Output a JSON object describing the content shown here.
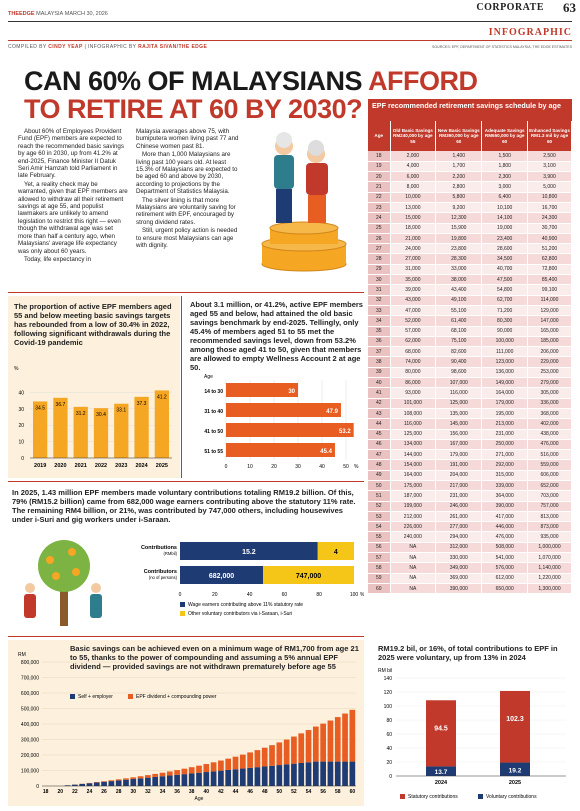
{
  "header": {
    "brand": "THEEDGE",
    "brand_sub": "MALAYSIA",
    "date": "MARCH 30, 2026",
    "section": "CORPORATE",
    "page": "63",
    "label": "INFOGRAPHIC",
    "credit_prefix": "COMPILED BY",
    "credit_name": "CINDY YEAP",
    "credit_mid": "| INFOGRAPHIC BY",
    "credit_illus": "RAJITA SIVAN/THE EDGE",
    "source": "SOURCES: EPF, DEPARTMENT OF STATISTICS MALAYSIA, THE EDGE ESTIMATES"
  },
  "title": {
    "line1_a": "CAN 60% OF MALAYSIANS ",
    "line1_b": "AFFORD",
    "line2": "TO RETIRE AT 60 BY 2030?"
  },
  "article": {
    "col1": [
      "About 60% of Employees Provident Fund (EPF) members are expected to reach the recommended basic savings by age 60 in 2030, up from 41.2% at end-2025, Finance Minister II Datuk Seri Amir Hamzah told Parliament in late February.",
      "Yet, a reality check may be warranted, given that EPF members are allowed to withdraw all their retirement savings at age 55, and populist lawmakers are unlikely to amend legislation to restrict this right — even though the withdrawal age was set more than half a century ago, when Malaysians' average life expectancy was only about 60 years.",
      "Today, life expectancy in"
    ],
    "col2": [
      "Malaysia averages above 75, with bumiputera women living past 77 and Chinese women past 81.",
      "More than 1,000 Malaysians are living past 100 years old. At least 15.3% of Malaysians are expected to be aged 60 and above by 2030, according to projections by the Department of Statistics Malaysia.",
      "The silver lining is that more Malaysians are voluntarily saving for retirement with EPF, encouraged by strong dividend rates.",
      "Still, urgent policy action is needed to ensure most Malaysians can age with dignity."
    ]
  },
  "table": {
    "title": "EPF recommended retirement savings schedule by age",
    "columns": [
      "Age",
      "Old Basic Savings RM240,000 by age 55",
      "New Basic Savings RM390,000 by age 60",
      "Adequate Savings RM650,000 by age 60",
      "Enhanced Savings RM1.3 mil by age 60"
    ],
    "rows": [
      [
        "18",
        "2,000",
        "1,400",
        "1,500",
        "2,500"
      ],
      [
        "19",
        "4,000",
        "1,700",
        "1,800",
        "3,100"
      ],
      [
        "20",
        "6,000",
        "2,200",
        "2,300",
        "3,900"
      ],
      [
        "21",
        "8,000",
        "2,800",
        "3,000",
        "5,000"
      ],
      [
        "22",
        "10,000",
        "5,800",
        "6,400",
        "10,800"
      ],
      [
        "23",
        "13,000",
        "9,200",
        "10,100",
        "16,700"
      ],
      [
        "24",
        "15,000",
        "12,300",
        "14,100",
        "24,300"
      ],
      [
        "25",
        "18,000",
        "15,900",
        "19,000",
        "30,700"
      ],
      [
        "26",
        "21,000",
        "19,800",
        "23,400",
        "40,900"
      ],
      [
        "27",
        "24,000",
        "23,800",
        "28,600",
        "51,200"
      ],
      [
        "28",
        "27,000",
        "28,300",
        "34,500",
        "62,800"
      ],
      [
        "29",
        "31,000",
        "33,000",
        "40,700",
        "72,800"
      ],
      [
        "30",
        "35,000",
        "38,000",
        "47,500",
        "85,400"
      ],
      [
        "31",
        "39,000",
        "43,400",
        "54,800",
        "99,100"
      ],
      [
        "32",
        "43,000",
        "49,100",
        "62,700",
        "114,000"
      ],
      [
        "33",
        "47,000",
        "55,100",
        "71,200",
        "129,000"
      ],
      [
        "34",
        "52,000",
        "61,400",
        "80,300",
        "147,000"
      ],
      [
        "35",
        "57,000",
        "68,100",
        "90,000",
        "165,000"
      ],
      [
        "36",
        "62,000",
        "75,100",
        "100,000",
        "185,000"
      ],
      [
        "37",
        "68,000",
        "82,600",
        "111,000",
        "206,000"
      ],
      [
        "38",
        "74,000",
        "90,400",
        "123,000",
        "229,000"
      ],
      [
        "39",
        "80,000",
        "98,600",
        "136,000",
        "253,000"
      ],
      [
        "40",
        "86,000",
        "107,000",
        "149,000",
        "279,000"
      ],
      [
        "41",
        "93,000",
        "116,000",
        "164,000",
        "305,000"
      ],
      [
        "42",
        "101,000",
        "125,000",
        "179,000",
        "336,000"
      ],
      [
        "43",
        "108,000",
        "135,000",
        "195,000",
        "368,000"
      ],
      [
        "44",
        "116,000",
        "145,000",
        "213,000",
        "402,000"
      ],
      [
        "45",
        "125,000",
        "156,000",
        "231,000",
        "438,000"
      ],
      [
        "46",
        "134,000",
        "167,000",
        "250,000",
        "476,000"
      ],
      [
        "47",
        "144,000",
        "179,000",
        "271,000",
        "516,000"
      ],
      [
        "48",
        "154,000",
        "191,000",
        "292,000",
        "559,000"
      ],
      [
        "49",
        "164,000",
        "204,000",
        "315,000",
        "606,000"
      ],
      [
        "50",
        "175,000",
        "217,000",
        "339,000",
        "652,000"
      ],
      [
        "51",
        "187,000",
        "231,000",
        "364,000",
        "703,000"
      ],
      [
        "52",
        "199,000",
        "246,000",
        "390,000",
        "757,000"
      ],
      [
        "53",
        "212,000",
        "261,000",
        "417,000",
        "813,000"
      ],
      [
        "54",
        "226,000",
        "277,000",
        "446,000",
        "873,000"
      ],
      [
        "55",
        "240,000",
        "294,000",
        "476,000",
        "935,000"
      ],
      [
        "56",
        "NA",
        "312,000",
        "508,000",
        "1,000,000"
      ],
      [
        "57",
        "NA",
        "330,000",
        "541,000",
        "1,070,000"
      ],
      [
        "58",
        "NA",
        "349,000",
        "576,000",
        "1,140,000"
      ],
      [
        "59",
        "NA",
        "369,000",
        "612,000",
        "1,220,000"
      ],
      [
        "60",
        "NA",
        "390,000",
        "650,000",
        "1,300,000"
      ]
    ]
  },
  "panels": {
    "p1_title": "The proportion of active EPF members aged 55 and below meeting basic savings targets has rebounded from a low of 30.4% in 2022, following significant withdrawals during the Covid-19 pandemic",
    "p2_title": "About 3.1 million, or 41.2%, active EPF members aged 55 and below, had attained the old basic savings benchmark by end-2025. Tellingly, only 45.4% of members aged 51 to 55 met the recommended savings level, down from 53.2% among those aged 41 to 50, given that members are allowed to empty Wellness Account 2 at age 50.",
    "p3_title": "In 2025, 1.43 million EPF members made voluntary contributions totaling RM19.2 billion. Of this, 79% (RM15.2 billion) came from 682,000 wage earners contributing above the statutory 11% rate. The remaining RM4 billion, or 21%, was contributed by 747,000 others, including housewives under i-Suri and gig workers under i-Saraan.",
    "p4_title": "Basic savings can be achieved even on a minimum wage of RM1,700 from age 21 to 55, thanks to the power of compounding and assuming a 5% annual EPF dividend — provided savings are not withdrawn prematurely before age 55",
    "p5_title": "RM19.2 bil, or 16%, of total contributions to EPF in 2025 were voluntary, up from 13% in 2024"
  },
  "chart_data": [
    {
      "type": "bar",
      "categories": [
        "2019",
        "2020",
        "2021",
        "2022",
        "2023",
        "2024",
        "2025"
      ],
      "values": [
        34.5,
        36.7,
        31.2,
        30.4,
        33.1,
        37.3,
        41.2
      ],
      "ylabel": "%",
      "ylim": [
        0,
        50
      ],
      "yticks": [
        0,
        10,
        20,
        30,
        40
      ],
      "color": "#f5a623"
    },
    {
      "type": "bar",
      "orientation": "horizontal",
      "categories": [
        "14 to 30",
        "31 to 40",
        "41 to 50",
        "51 to 55"
      ],
      "values": [
        30,
        47.9,
        53.2,
        45.4
      ],
      "ylabel": "Age",
      "xlim": [
        0,
        50
      ],
      "xticks": [
        0,
        10,
        20,
        30,
        40,
        50
      ],
      "xunit": "%",
      "color": "#e85d22"
    },
    {
      "type": "bar",
      "orientation": "horizontal",
      "stacked": true,
      "categories": [
        "Contributions",
        "Contributors"
      ],
      "category_units": [
        "(RMbil)",
        "(no of persons)"
      ],
      "series": [
        {
          "name": "Wage earners contributing above 11% statutory rate",
          "values": [
            15.2,
            682000
          ],
          "labels": [
            "15.2",
            "682,000"
          ],
          "color": "#1f3b73"
        },
        {
          "name": "Other voluntary contributors via i-Saraan, i-Suri",
          "values": [
            4,
            747000
          ],
          "labels": [
            "4",
            "747,000"
          ],
          "color": "#f5c518"
        }
      ],
      "xticks": [
        0,
        20,
        40,
        60,
        80,
        100
      ],
      "xunit": "%"
    },
    {
      "type": "bar",
      "stacked": true,
      "x": [
        18,
        19,
        20,
        21,
        22,
        23,
        24,
        25,
        26,
        27,
        28,
        29,
        30,
        31,
        32,
        33,
        34,
        35,
        36,
        37,
        38,
        39,
        40,
        41,
        42,
        43,
        44,
        45,
        46,
        47,
        48,
        49,
        50,
        51,
        52,
        53,
        54,
        55,
        56,
        57,
        58,
        59,
        60
      ],
      "xlabel": "Age",
      "ylabel": "RM",
      "ylim": [
        0,
        800000
      ],
      "yticks": [
        0,
        100000,
        200000,
        300000,
        400000,
        500000,
        600000,
        700000,
        800000
      ],
      "xticks": [
        18,
        20,
        22,
        24,
        26,
        28,
        30,
        32,
        34,
        36,
        38,
        40,
        42,
        44,
        46,
        48,
        50,
        52,
        54,
        56,
        58,
        60
      ],
      "series": [
        {
          "name": "Self + employer",
          "color": "#1f3b73",
          "values": [
            0,
            0,
            0,
            4500,
            9000,
            13500,
            18000,
            22500,
            27000,
            31500,
            36000,
            40500,
            45000,
            49500,
            54000,
            58500,
            63000,
            67500,
            72000,
            76500,
            81000,
            85500,
            90000,
            94500,
            99000,
            103500,
            108000,
            112500,
            117000,
            121500,
            126000,
            130500,
            135000,
            139500,
            144000,
            148500,
            153000,
            157500,
            157500,
            157500,
            157500,
            157500,
            157500
          ]
        },
        {
          "name": "EPF dividend + compounding power",
          "color": "#e85d22",
          "values": [
            0,
            0,
            0,
            100,
            450,
            1000,
            1800,
            2800,
            4000,
            5400,
            7000,
            8900,
            11000,
            13500,
            16200,
            19300,
            22700,
            26500,
            30700,
            35300,
            40300,
            45800,
            51800,
            58300,
            65300,
            73000,
            81200,
            90000,
            99600,
            110000,
            121000,
            133000,
            146000,
            160000,
            175000,
            191000,
            208000,
            226000,
            245000,
            265000,
            287000,
            310000,
            334000
          ]
        }
      ]
    },
    {
      "type": "bar",
      "stacked": true,
      "categories": [
        "2024",
        "2025"
      ],
      "ylabel": "RM bil",
      "ylim": [
        0,
        140
      ],
      "yticks": [
        0,
        20,
        40,
        60,
        80,
        100,
        120,
        140
      ],
      "series": [
        {
          "name": "Voluntary contributions",
          "values": [
            13.7,
            19.2
          ],
          "color": "#1f3b73"
        },
        {
          "name": "Statutory contributions",
          "values": [
            94.5,
            102.3
          ],
          "color": "#c0392b"
        }
      ]
    }
  ],
  "legends": {
    "c3_a": "Wage earners contributing above 11% statutory rate",
    "c3_b": "Other voluntary contributors via i-Saraan, i-Suri",
    "c4_a": "Self + employer",
    "c4_b": "EPF dividend + compounding power",
    "c5_a": "Statutory contributions",
    "c5_b": "Voluntary contributions"
  }
}
